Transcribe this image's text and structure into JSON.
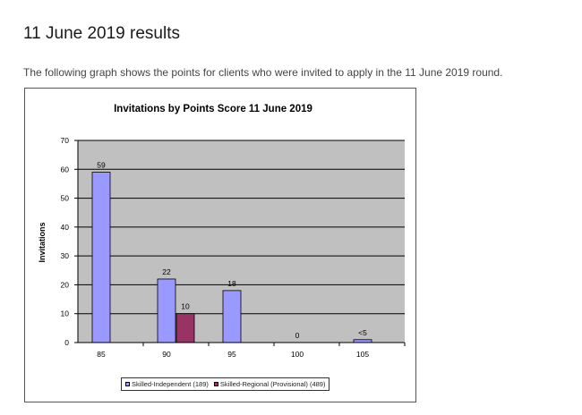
{
  "page": {
    "heading": "11 June 2019 results",
    "intro": "The following graph shows the points for clients who were invited to apply in the 11 June 2019 round."
  },
  "chart_data": {
    "type": "bar",
    "title": "Invitations by Points Score 11 June 2019",
    "xlabel": "",
    "ylabel": "Invitations",
    "categories": [
      "85",
      "90",
      "95",
      "100",
      "105"
    ],
    "ylim": [
      0,
      70
    ],
    "yticks": [
      0,
      10,
      20,
      30,
      40,
      50,
      60,
      70
    ],
    "grid": true,
    "legend_position": "bottom",
    "series": [
      {
        "name": "Skilled-Independent (189)",
        "color": "#9999ff",
        "values": [
          59,
          22,
          18,
          0,
          1
        ],
        "labels": [
          "59",
          "22",
          "18",
          "0",
          "<5"
        ]
      },
      {
        "name": "Skilled-Regional (Provisional) (489)",
        "color": "#993366",
        "values": [
          null,
          10,
          null,
          null,
          null
        ],
        "labels": [
          "",
          "10",
          "",
          "",
          ""
        ]
      }
    ],
    "plot_background": "#c0c0c0"
  }
}
